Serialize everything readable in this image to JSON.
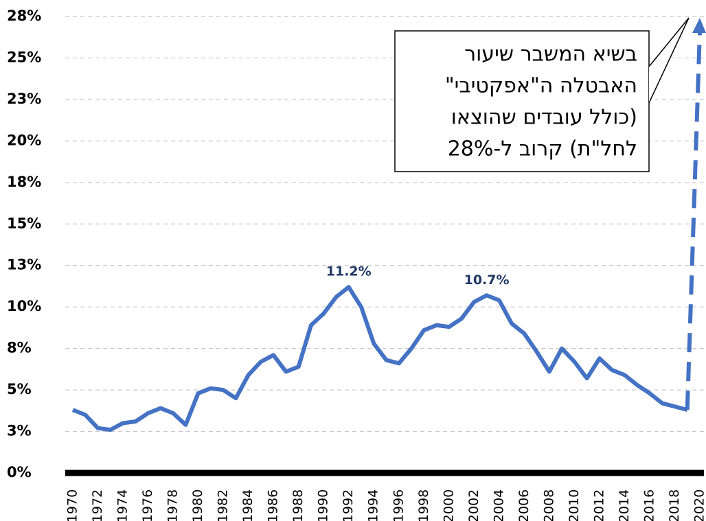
{
  "chart_data": {
    "type": "line",
    "x": [
      1970,
      1971,
      1972,
      1973,
      1974,
      1975,
      1976,
      1977,
      1978,
      1979,
      1980,
      1981,
      1982,
      1983,
      1984,
      1985,
      1986,
      1987,
      1988,
      1989,
      1990,
      1991,
      1992,
      1993,
      1994,
      1995,
      1996,
      1997,
      1998,
      1999,
      2000,
      2001,
      2002,
      2003,
      2004,
      2005,
      2006,
      2007,
      2008,
      2009,
      2010,
      2011,
      2012,
      2013,
      2014,
      2015,
      2016,
      2017,
      2018,
      2019
    ],
    "series": [
      {
        "color": "#4472c4",
        "values": [
          3.8,
          3.5,
          2.7,
          2.6,
          3.0,
          3.1,
          3.6,
          3.9,
          3.6,
          2.9,
          4.8,
          5.1,
          5.0,
          4.5,
          5.9,
          6.7,
          7.1,
          6.1,
          6.4,
          8.9,
          9.6,
          10.6,
          11.2,
          10.0,
          7.8,
          6.8,
          6.6,
          7.5,
          8.6,
          8.9,
          8.8,
          9.3,
          10.3,
          10.7,
          10.4,
          9.0,
          8.4,
          7.3,
          6.1,
          7.5,
          6.7,
          5.7,
          6.9,
          6.2,
          5.9,
          5.3,
          4.8,
          4.2,
          4.0,
          3.8
        ],
        "value_labels": [
          null,
          null,
          null,
          null,
          null,
          null,
          null,
          null,
          null,
          null,
          null,
          null,
          null,
          null,
          null,
          null,
          null,
          null,
          null,
          null,
          null,
          null,
          "11.2%",
          null,
          null,
          null,
          null,
          null,
          null,
          null,
          null,
          null,
          null,
          "10.7%",
          null,
          null,
          null,
          null,
          null,
          null,
          null,
          null,
          null,
          null,
          null,
          null,
          null,
          null,
          null,
          null
        ]
      }
    ],
    "xlim": [
      1970,
      2020
    ],
    "xticks": [
      1970,
      1972,
      1974,
      1976,
      1978,
      1980,
      1982,
      1984,
      1986,
      1988,
      1990,
      1992,
      1994,
      1996,
      1998,
      2000,
      2002,
      2004,
      2006,
      2008,
      2010,
      2012,
      2014,
      2016,
      2018,
      2020
    ],
    "ylim": [
      0,
      27.5
    ],
    "yticks": [
      {
        "value": 0,
        "label": "0%"
      },
      {
        "value": 2.5,
        "label": "3%"
      },
      {
        "value": 5,
        "label": "5%"
      },
      {
        "value": 7.5,
        "label": "8%"
      },
      {
        "value": 10,
        "label": "10%"
      },
      {
        "value": 12.5,
        "label": "13%"
      },
      {
        "value": 15,
        "label": "15%"
      },
      {
        "value": 17.5,
        "label": "18%"
      },
      {
        "value": 20,
        "label": "20%"
      },
      {
        "value": 22.5,
        "label": "23%"
      },
      {
        "value": 25,
        "label": "25%"
      },
      {
        "value": 27.5,
        "label": "28%"
      }
    ],
    "grid": true,
    "annotation": [
      "בשיא המשבר שיעור",
      "האבטלה ה\"אפקטיבי\"",
      "(כולל עובדים שהוצאו",
      "לחל\"ת) קרוב ל-28%"
    ]
  }
}
